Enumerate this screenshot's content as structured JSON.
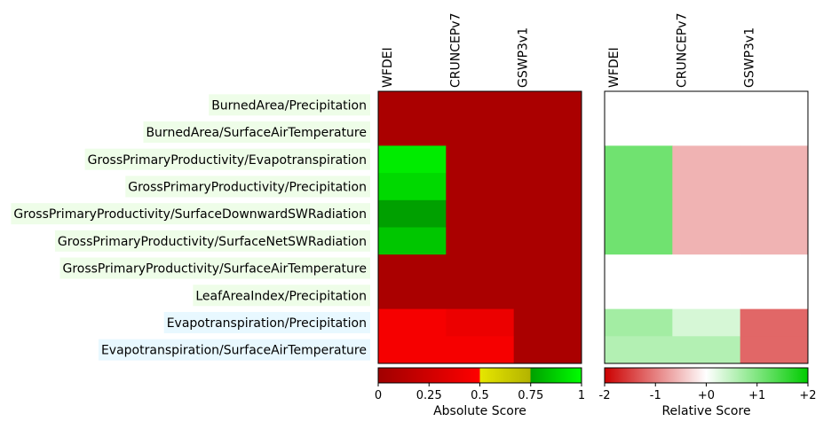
{
  "chart_data": [
    {
      "type": "heatmap",
      "name": "absolute",
      "columns": [
        "WFDEI",
        "CRUNCEPv7",
        "GSWP3v1"
      ],
      "rows": [
        {
          "label": "BurnedArea/Precipitation",
          "group": "green"
        },
        {
          "label": "BurnedArea/SurfaceAirTemperature",
          "group": "green"
        },
        {
          "label": "GrossPrimaryProductivity/Evapotranspiration",
          "group": "green"
        },
        {
          "label": "GrossPrimaryProductivity/Precipitation",
          "group": "green"
        },
        {
          "label": "GrossPrimaryProductivity/SurfaceDownwardSWRadiation",
          "group": "green"
        },
        {
          "label": "GrossPrimaryProductivity/SurfaceNetSWRadiation",
          "group": "green"
        },
        {
          "label": "GrossPrimaryProductivity/SurfaceAirTemperature",
          "group": "green"
        },
        {
          "label": "LeafAreaIndex/Precipitation",
          "group": "green"
        },
        {
          "label": "Evapotranspiration/Precipitation",
          "group": "blue"
        },
        {
          "label": "Evapotranspiration/SurfaceAirTemperature",
          "group": "blue"
        }
      ],
      "values": [
        [
          0.05,
          0.05,
          0.05
        ],
        [
          0.05,
          0.05,
          0.05
        ],
        [
          0.95,
          0.05,
          0.05
        ],
        [
          0.9,
          0.05,
          0.05
        ],
        [
          0.75,
          0.05,
          0.05
        ],
        [
          0.85,
          0.05,
          0.05
        ],
        [
          0.05,
          0.05,
          0.05
        ],
        [
          0.05,
          0.05,
          0.05
        ],
        [
          0.45,
          0.4,
          0.05
        ],
        [
          0.45,
          0.45,
          0.05
        ]
      ],
      "colorbar": {
        "label": "Absolute Score",
        "ticks": [
          "0",
          "0.25",
          "0.5",
          "0.75",
          "1"
        ],
        "range": [
          0,
          1
        ],
        "colors": [
          "#a00000",
          "#ff0000",
          "#e6e600",
          "#00ff00"
        ]
      }
    },
    {
      "type": "heatmap",
      "name": "relative",
      "columns": [
        "WFDEI",
        "CRUNCEPv7",
        "GSWP3v1"
      ],
      "values": [
        [
          null,
          null,
          null
        ],
        [
          null,
          null,
          null
        ],
        [
          1.4,
          -0.7,
          -0.7
        ],
        [
          1.4,
          -0.7,
          -0.7
        ],
        [
          1.4,
          -0.7,
          -0.7
        ],
        [
          1.4,
          -0.7,
          -0.7
        ],
        [
          null,
          null,
          null
        ],
        [
          null,
          null,
          null
        ],
        [
          0.9,
          0.4,
          -1.4
        ],
        [
          0.75,
          0.75,
          -1.4
        ]
      ],
      "colorbar": {
        "label": "Relative Score",
        "ticks": [
          "-2",
          "-1",
          "+0",
          "+1",
          "+2"
        ],
        "range": [
          -2,
          2
        ],
        "colors": [
          "#cc0000",
          "#ffffff",
          "#00cc00"
        ]
      }
    }
  ]
}
